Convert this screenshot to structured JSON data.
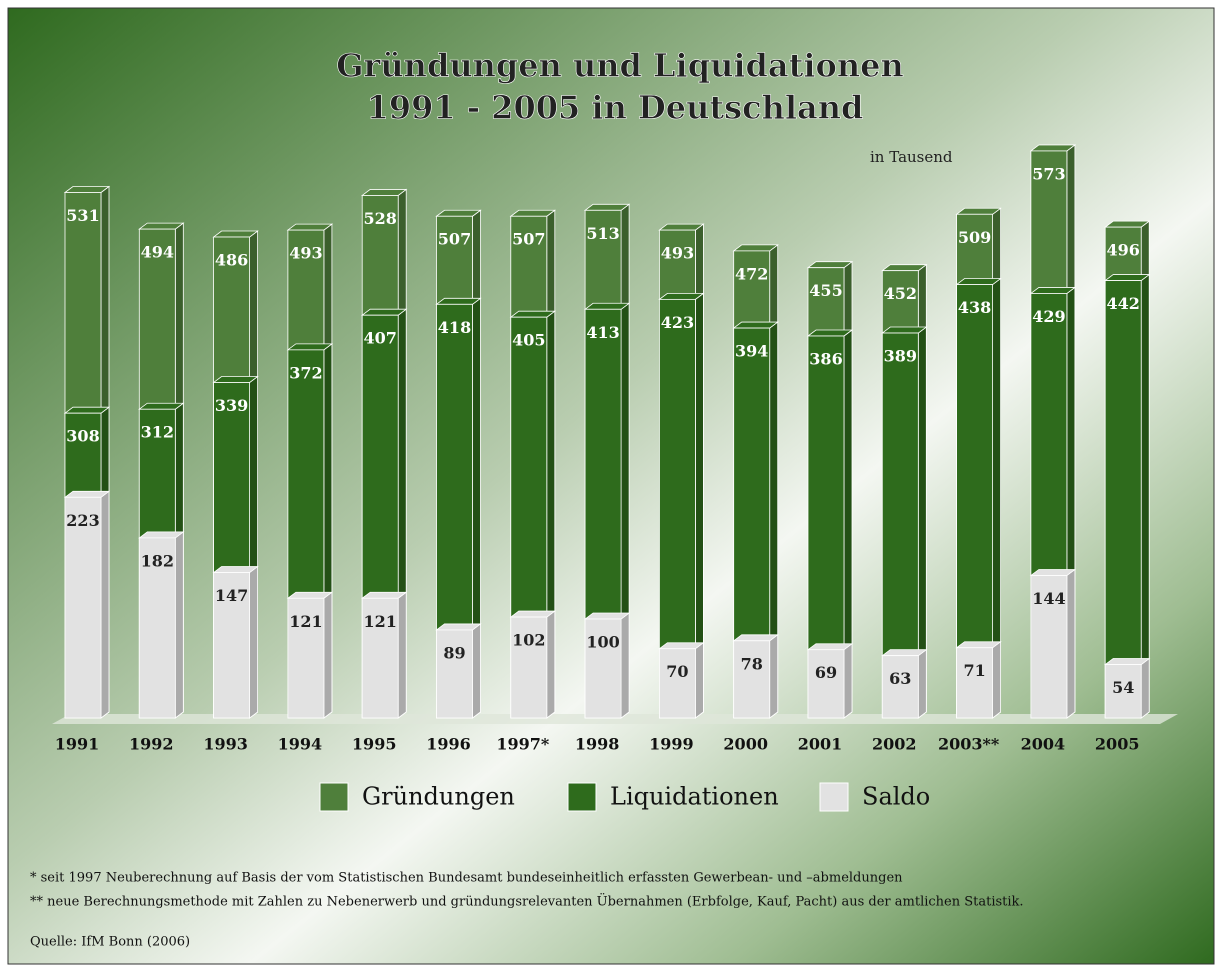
{
  "chart_data": {
    "type": "bar",
    "title": "Gründungen und Liquidationen",
    "subtitle": "1991 - 2005 in Deutschland",
    "unit_note": "in Tausend",
    "categories": [
      "1991",
      "1992",
      "1993",
      "1994",
      "1995",
      "1996",
      "1997*",
      "1998",
      "1999",
      "2000",
      "2001",
      "2002",
      "2003**",
      "2004",
      "2005"
    ],
    "series": [
      {
        "name": "Gründungen",
        "color": "#4f7f3b",
        "values": [
          531,
          494,
          486,
          493,
          528,
          507,
          507,
          513,
          493,
          472,
          455,
          452,
          509,
          573,
          496
        ]
      },
      {
        "name": "Liquidationen",
        "color": "#2e6b1c",
        "values": [
          308,
          312,
          339,
          372,
          407,
          418,
          405,
          413,
          423,
          394,
          386,
          389,
          438,
          429,
          442
        ]
      },
      {
        "name": "Saldo",
        "color": "#e2e2e2",
        "values": [
          223,
          182,
          147,
          121,
          121,
          89,
          102,
          100,
          70,
          78,
          69,
          63,
          71,
          144,
          54
        ]
      }
    ],
    "ylim": [
      0,
      580
    ],
    "notes": [
      "* seit 1997 Neuberechnung  auf Basis der vom Statistischen Bundesamt bundeseinheitlich erfassten Gewerbean- und –abmeldungen",
      "** neue Berechnungsmethode mit Zahlen zu Nebenerwerb und gründungsrelevanten Übernahmen (Erbfolge, Kauf, Pacht) aus der amtlichen Statistik."
    ],
    "source": "Quelle: IfM Bonn (2006)"
  }
}
